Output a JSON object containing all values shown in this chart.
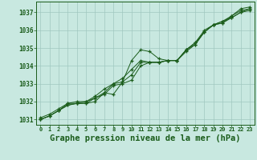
{
  "background_color": "#c8e8e0",
  "plot_bg_color": "#c8e8e0",
  "grid_color": "#a0c8c0",
  "line_color": "#1a5c1a",
  "marker_color": "#1a5c1a",
  "xlabel": "Graphe pression niveau de la mer (hPa)",
  "xlabel_fontsize": 7.5,
  "xlim": [
    -0.5,
    23.5
  ],
  "ylim": [
    1030.7,
    1037.6
  ],
  "yticks": [
    1031,
    1032,
    1033,
    1034,
    1035,
    1036,
    1037
  ],
  "xticks": [
    0,
    1,
    2,
    3,
    4,
    5,
    6,
    7,
    8,
    9,
    10,
    11,
    12,
    13,
    14,
    15,
    16,
    17,
    18,
    19,
    20,
    21,
    22,
    23
  ],
  "series": [
    [
      1031.1,
      1031.3,
      1031.6,
      1031.9,
      1031.9,
      1031.9,
      1032.0,
      1032.5,
      1032.4,
      1033.1,
      1034.3,
      1034.9,
      1034.8,
      1034.4,
      1034.3,
      1034.3,
      1034.8,
      1035.2,
      1035.9,
      1036.3,
      1036.4,
      1036.8,
      1037.2,
      1037.3
    ],
    [
      1031.0,
      1031.2,
      1031.5,
      1031.8,
      1031.9,
      1032.0,
      1032.2,
      1032.5,
      1033.0,
      1033.3,
      1033.8,
      1034.3,
      1034.2,
      1034.2,
      1034.3,
      1034.3,
      1034.9,
      1035.3,
      1035.9,
      1036.3,
      1036.4,
      1036.7,
      1037.0,
      1037.2
    ],
    [
      1031.0,
      1031.2,
      1031.5,
      1031.9,
      1032.0,
      1032.0,
      1032.3,
      1032.7,
      1033.0,
      1033.1,
      1033.5,
      1034.2,
      1034.2,
      1034.2,
      1034.3,
      1034.3,
      1034.9,
      1035.3,
      1036.0,
      1036.3,
      1036.5,
      1036.8,
      1037.1,
      1037.2
    ],
    [
      1031.0,
      1031.2,
      1031.5,
      1031.8,
      1031.9,
      1031.9,
      1032.2,
      1032.4,
      1032.9,
      1033.0,
      1033.2,
      1034.0,
      1034.2,
      1034.2,
      1034.3,
      1034.3,
      1034.9,
      1035.2,
      1035.9,
      1036.3,
      1036.5,
      1036.7,
      1037.0,
      1037.1
    ]
  ]
}
